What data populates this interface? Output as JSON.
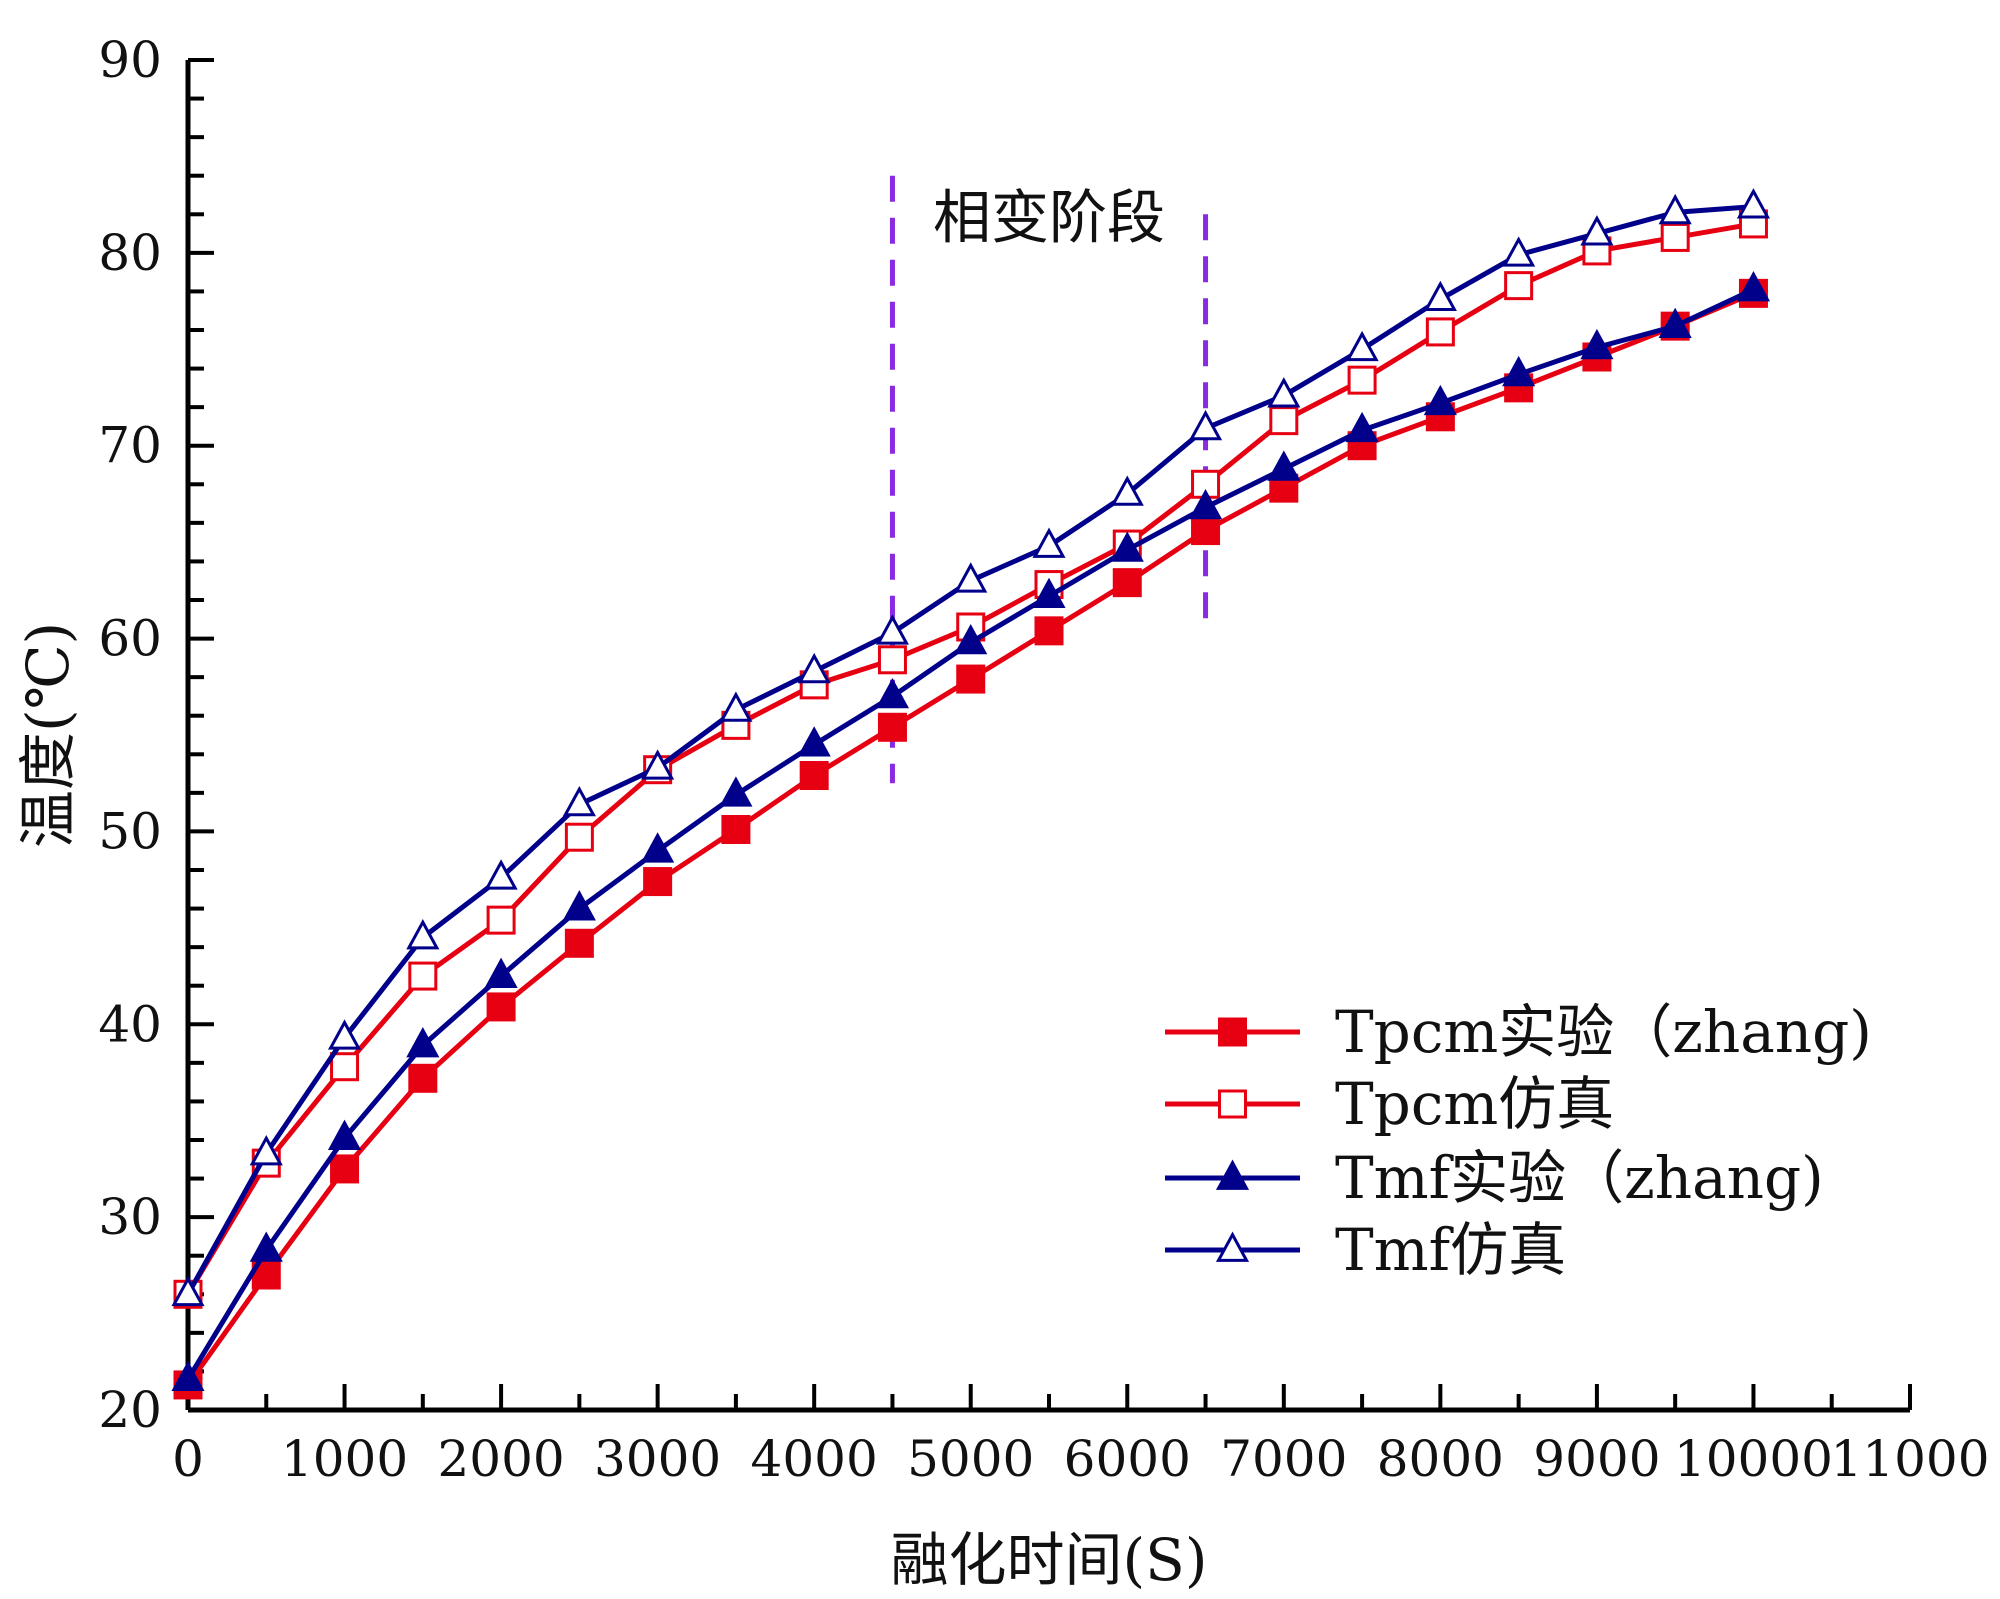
{
  "chart_data": {
    "type": "line",
    "title": "",
    "xlabel": "融化时间(S)",
    "ylabel": "温度(℃)",
    "xlim": [
      0,
      11000
    ],
    "ylim": [
      20,
      90
    ],
    "xticks": [
      0,
      1000,
      2000,
      3000,
      4000,
      5000,
      6000,
      7000,
      8000,
      9000,
      10000,
      11000
    ],
    "yticks": [
      20,
      30,
      40,
      50,
      60,
      70,
      80,
      90
    ],
    "x": [
      0,
      500,
      1000,
      1500,
      2000,
      2500,
      3000,
      3500,
      4000,
      4500,
      5000,
      5500,
      6000,
      6500,
      7000,
      7500,
      8000,
      8500,
      9000,
      9500,
      10000
    ],
    "series": [
      {
        "name": "Tpcm实验（zhang)",
        "color": "#e60012",
        "marker": "square-filled",
        "values": [
          21.3,
          27.0,
          32.5,
          37.2,
          40.9,
          44.2,
          47.4,
          50.1,
          52.9,
          55.4,
          57.9,
          60.4,
          62.9,
          65.6,
          67.8,
          70.0,
          71.5,
          73.0,
          74.6,
          76.2,
          77.9
        ]
      },
      {
        "name": "Tpcm仿真",
        "color": "#e60012",
        "marker": "square-open",
        "values": [
          26.0,
          32.8,
          37.8,
          42.5,
          45.4,
          49.7,
          53.2,
          55.5,
          57.6,
          58.9,
          60.6,
          62.8,
          64.9,
          68.0,
          71.3,
          73.4,
          75.9,
          78.3,
          80.1,
          80.8,
          81.5
        ]
      },
      {
        "name": "Tmf实验（zhang)",
        "color": "#00008b",
        "marker": "triangle-filled",
        "values": [
          21.6,
          28.3,
          34.1,
          38.9,
          42.5,
          46.0,
          49.0,
          51.9,
          54.5,
          57.0,
          59.8,
          62.2,
          64.6,
          66.8,
          68.8,
          70.8,
          72.2,
          73.7,
          75.1,
          76.2,
          78.1
        ]
      },
      {
        "name": "Tmf仿真",
        "color": "#00008b",
        "marker": "triangle-open",
        "values": [
          26.0,
          33.3,
          39.3,
          44.5,
          47.6,
          51.4,
          53.3,
          56.3,
          58.3,
          60.3,
          63.0,
          64.8,
          67.5,
          70.9,
          72.6,
          75.0,
          77.6,
          79.9,
          81.0,
          82.1,
          82.4
        ]
      }
    ],
    "annotations": [
      {
        "text": "相变阶段",
        "phase_start_x": 4500,
        "phase_end_x": 6500,
        "line_style": "dashed",
        "line_color": "#8a2be2"
      }
    ],
    "legend_position": "bottom-right",
    "grid": false
  }
}
